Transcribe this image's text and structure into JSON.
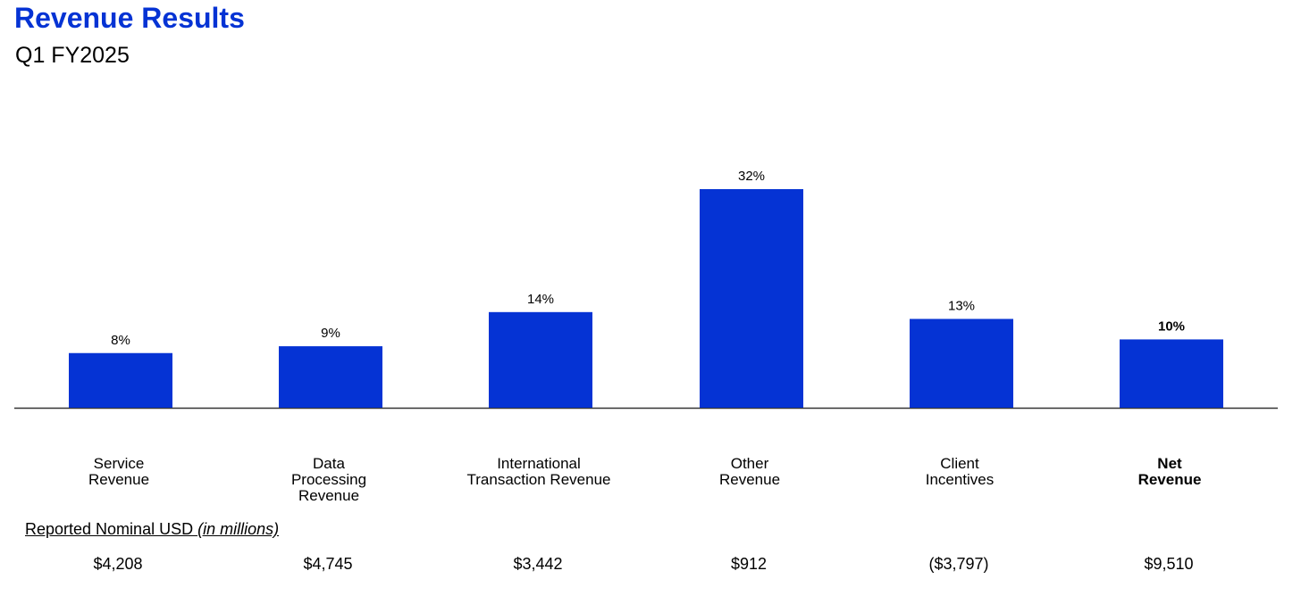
{
  "header": {
    "title": "Revenue Results",
    "subtitle": "Q1 FY2025"
  },
  "colors": {
    "accent": "#0533d4",
    "bar": "#0533d4",
    "axis": "#333333"
  },
  "chart_data": {
    "type": "bar",
    "categories": [
      "Service\nRevenue",
      "Data\nProcessing\nRevenue",
      "International\nTransaction Revenue",
      "Other\nRevenue",
      "Client\nIncentives",
      "Net\nRevenue"
    ],
    "values": [
      8,
      9,
      14,
      32,
      13,
      10
    ],
    "value_labels": [
      "8%",
      "9%",
      "14%",
      "32%",
      "13%",
      "10%"
    ],
    "ylim": [
      0,
      32
    ],
    "grid": false,
    "legend": "none",
    "bold_categories": [
      5
    ]
  },
  "table": {
    "label_main": "Reported Nominal USD ",
    "label_italic": "(in millions)",
    "values": [
      "$4,208",
      "$4,745",
      "$3,442",
      "$912",
      "($3,797)",
      "$9,510"
    ]
  }
}
